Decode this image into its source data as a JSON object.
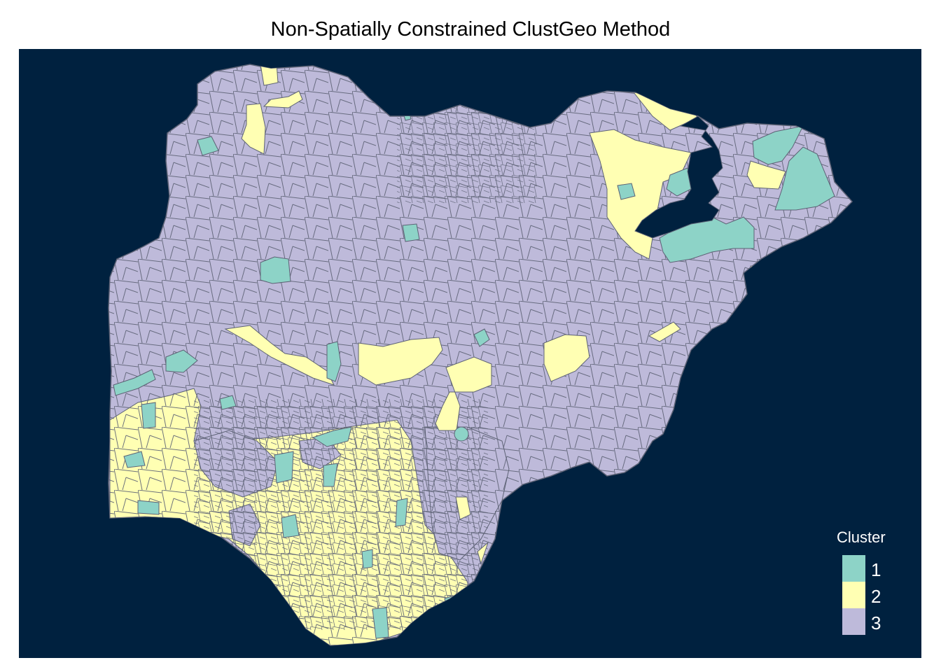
{
  "title": "Non-Spatially Constrained ClustGeo Method",
  "colors": {
    "background": "#00213f",
    "border": "#5d6275",
    "cluster_1": "#8dd3c7",
    "cluster_2": "#ffffb3",
    "cluster_3": "#bebada"
  },
  "legend": {
    "title": "Cluster",
    "items": [
      {
        "label": "1",
        "color": "#8dd3c7"
      },
      {
        "label": "2",
        "color": "#ffffb3"
      },
      {
        "label": "3",
        "color": "#bebada"
      }
    ]
  }
}
